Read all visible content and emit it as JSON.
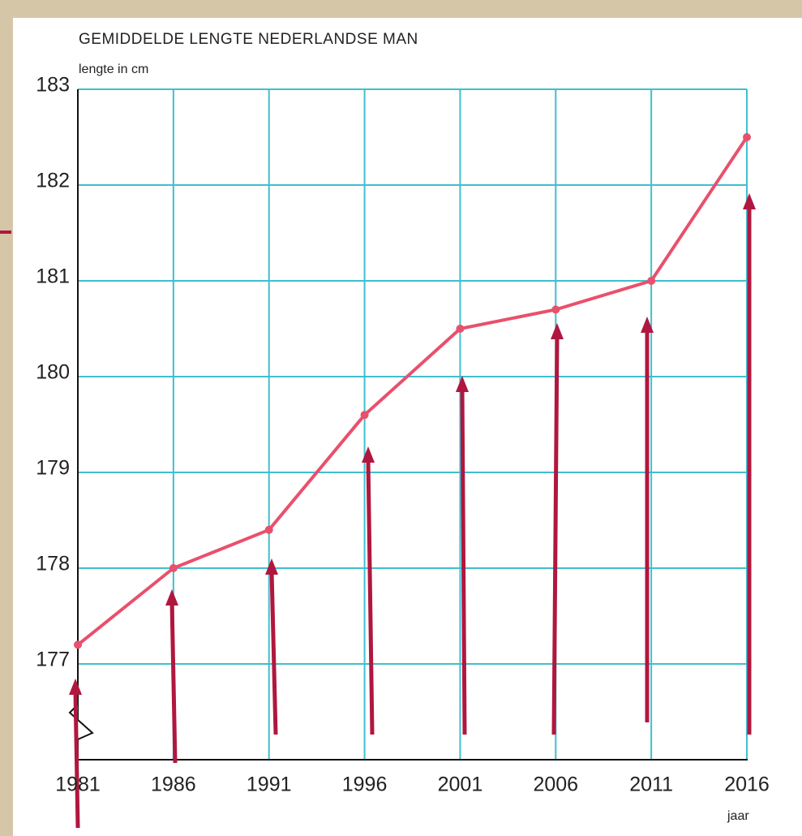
{
  "chart_data": {
    "type": "line",
    "title": "GEMIDDELDE LENGTE NEDERLANDSE MAN",
    "y_label": "lengte in cm",
    "x_label": "jaar",
    "x": [
      1981,
      1986,
      1991,
      1996,
      2001,
      2006,
      2011,
      2016
    ],
    "series": [
      {
        "color": "#e9506c",
        "values": [
          177.2,
          178.0,
          178.4,
          179.6,
          180.5,
          180.7,
          181.0,
          182.5
        ]
      }
    ],
    "xlim": [
      1981,
      2016
    ],
    "xticks": [
      1981,
      1986,
      1991,
      1996,
      2001,
      2006,
      2011,
      2016
    ],
    "ylim": [
      176,
      183
    ],
    "yticks": [
      177,
      178,
      179,
      180,
      181,
      182,
      183
    ],
    "grid": true,
    "grid_color": "#3fbfcf"
  }
}
